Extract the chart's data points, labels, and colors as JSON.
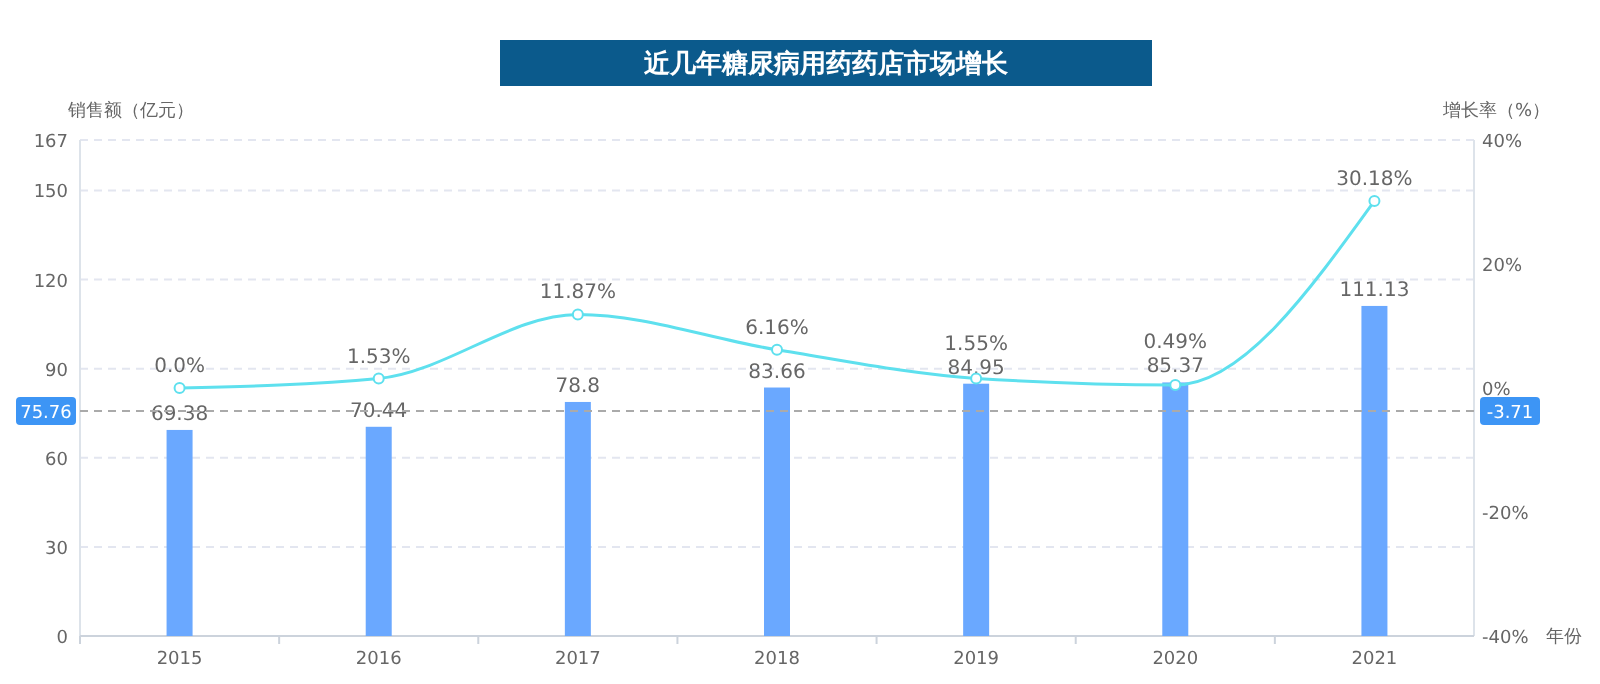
{
  "chart_data": {
    "type": "bar",
    "title": "近几年糖尿病用药药店市场增长",
    "xlabel": "年份",
    "ylabel": "销售额（亿元）",
    "y2label": "增长率（%）",
    "categories": [
      "2015",
      "2016",
      "2017",
      "2018",
      "2019",
      "2020",
      "2021"
    ],
    "series": [
      {
        "type": "bar",
        "color": "#6aa8ff",
        "values": [
          69.38,
          70.44,
          78.8,
          83.66,
          84.95,
          85.37,
          111.13
        ]
      },
      {
        "type": "line",
        "axis": "y2",
        "color": "#5ee0ee",
        "values": [
          0.0,
          1.53,
          11.87,
          6.16,
          1.55,
          0.49,
          30.18
        ],
        "value_labels": [
          "0.0%",
          "1.53%",
          "11.87%",
          "6.16%",
          "1.55%",
          "0.49%",
          "30.18%"
        ]
      }
    ],
    "ylim": [
      0,
      167
    ],
    "yticks": [
      0,
      30,
      60,
      90,
      120,
      150,
      167
    ],
    "y2lim": [
      -40,
      40
    ],
    "y2ticks": [
      {
        "value": -40,
        "label": "-40%"
      },
      {
        "value": -20,
        "label": "-20%"
      },
      {
        "value": 0,
        "label": "0%"
      },
      {
        "value": 20,
        "label": "20%"
      },
      {
        "value": 40,
        "label": "40%"
      }
    ],
    "ref_lines": [
      {
        "axis": "y",
        "value": 75.76,
        "label": "75.76",
        "color": "#aaaaaa",
        "line_style": "dashed"
      }
    ],
    "annotations": [
      "-3.71"
    ],
    "data_labels": true,
    "grid": "y",
    "marker": "circle",
    "line_style": "solid"
  }
}
